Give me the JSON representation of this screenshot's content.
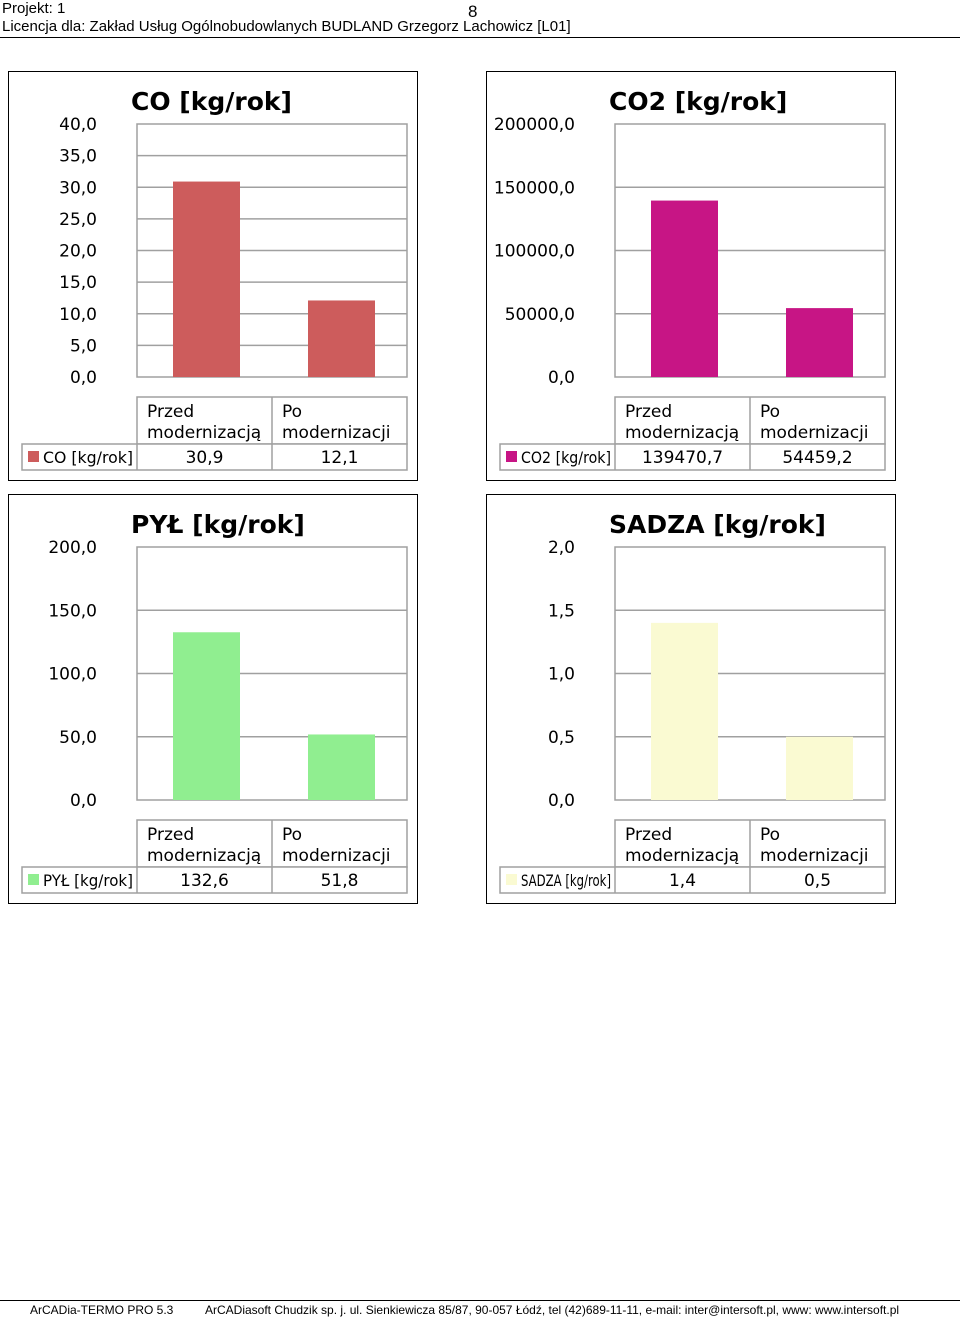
{
  "header": {
    "project": "Projekt: 1",
    "license": "Licencja dla: Zakład Usług Ogólnobudowlanych BUDLAND Grzegorz Lachowicz [L01]",
    "page_number": "8"
  },
  "footer": {
    "software": "ArCADia-TERMO PRO 5.3",
    "company": "ArCADiasoft Chudzik sp. j. ul. Sienkiewicza 85/87,   90-057 Łódź, tel (42)689-11-11, e-mail: inter@intersoft.pl, www: www.intersoft.pl"
  },
  "chart_data": [
    {
      "type": "bar",
      "title": "CO [kg/rok]",
      "categories": [
        "Przed modernizacją",
        "Po modernizacji"
      ],
      "series": [
        {
          "name": "CO [kg/rok]",
          "values": [
            30.9,
            12.1
          ],
          "labels": [
            "30,9",
            "12,1"
          ]
        }
      ],
      "ylim": [
        0,
        40
      ],
      "yticks": [
        "40,0",
        "35,0",
        "30,0",
        "25,0",
        "20,0",
        "15,0",
        "10,0",
        "5,0",
        "0,0"
      ],
      "color": "#cd5c5c",
      "grid": true,
      "legend": "data-table"
    },
    {
      "type": "bar",
      "title": "CO2 [kg/rok]",
      "categories": [
        "Przed modernizacją",
        "Po modernizacji"
      ],
      "series": [
        {
          "name": "CO2 [kg/rok]",
          "values": [
            139470.7,
            54459.2
          ],
          "labels": [
            "139470,7",
            "54459,2"
          ]
        }
      ],
      "ylim": [
        0,
        200000
      ],
      "yticks": [
        "200000,0",
        "150000,0",
        "100000,0",
        "50000,0",
        "0,0"
      ],
      "color": "#c71585",
      "grid": true,
      "legend": "data-table"
    },
    {
      "type": "bar",
      "title": "PYŁ [kg/rok]",
      "categories": [
        "Przed modernizacją",
        "Po modernizacji"
      ],
      "series": [
        {
          "name": "PYŁ [kg/rok]",
          "values": [
            132.6,
            51.8
          ],
          "labels": [
            "132,6",
            "51,8"
          ]
        }
      ],
      "ylim": [
        0,
        200
      ],
      "yticks": [
        "200,0",
        "150,0",
        "100,0",
        "50,0",
        "0,0"
      ],
      "color": "#90ee90",
      "grid": true,
      "legend": "data-table"
    },
    {
      "type": "bar",
      "title": "SADZA [kg/rok]",
      "categories": [
        "Przed modernizacją",
        "Po modernizacji"
      ],
      "series": [
        {
          "name": "SADZA [kg/rok]",
          "values": [
            1.4,
            0.5
          ],
          "labels": [
            "1,4",
            "0,5"
          ]
        }
      ],
      "ylim": [
        0,
        2
      ],
      "yticks": [
        "2,0",
        "1,5",
        "1,0",
        "0,5",
        "0,0"
      ],
      "color": "#fafad2",
      "grid": true,
      "legend": "data-table"
    }
  ]
}
